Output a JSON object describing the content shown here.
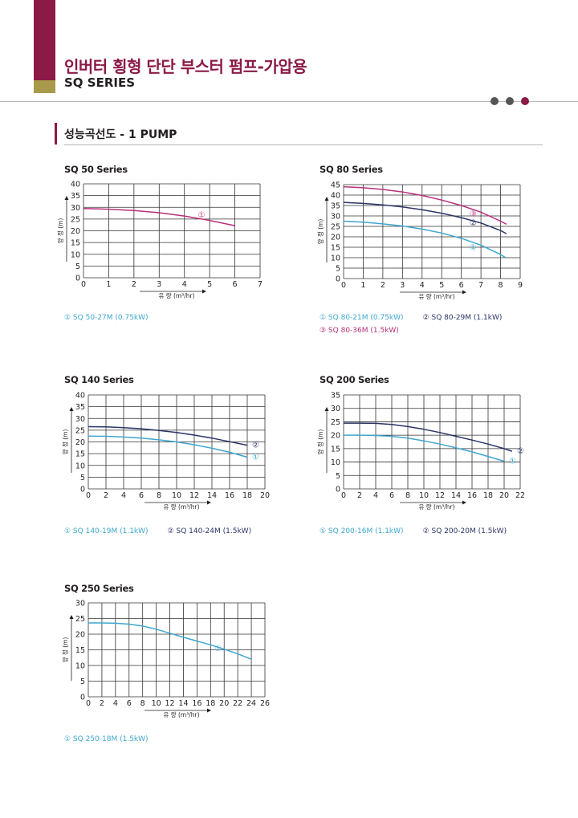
{
  "header": {
    "title_ko": "인버터 횡형 단단 부스터 펌프-가압용",
    "title_en": "SQ SERIES"
  },
  "section": {
    "title": "성능곡선도 - 1 PUMP"
  },
  "colors": {
    "brand_dark": "#8b1a47",
    "brand_gold": "#a89a4a",
    "magenta": "#b8307a",
    "navy": "#2a3466",
    "cyan": "#3ea6cf",
    "grid": "#333333",
    "dot_gray": "#555555"
  },
  "charts": [
    {
      "title": "SQ 50 Series",
      "legend": [
        [
          "① SQ 50-27M (0.75kW)"
        ]
      ]
    },
    {
      "title": "SQ 80 Series",
      "legend": [
        [
          "① SQ 80-21M (0.75kW)",
          "② SQ 80-29M (1.1kW)"
        ],
        [
          "③ SQ 80-36M (1.5kW)"
        ]
      ]
    },
    {
      "title": "SQ 140 Series",
      "legend": [
        [
          "① SQ 140-19M (1.1kW)",
          "② SQ 140-24M (1.5kW)"
        ]
      ]
    },
    {
      "title": "SQ 200 Series",
      "legend": [
        [
          "① SQ 200-16M (1.1kW)",
          "② SQ 200-20M (1.5kW)"
        ]
      ]
    },
    {
      "title": "SQ 250 Series",
      "legend": [
        [
          "① SQ 250-18M (1.5kW)"
        ]
      ]
    }
  ],
  "chart_data": [
    {
      "type": "line",
      "title": "SQ 50 Series",
      "xlabel": "유 량 (m³/hr)",
      "ylabel": "양 정 (m)",
      "xlim": [
        0,
        7
      ],
      "ylim": [
        0,
        40
      ],
      "xticks": [
        0,
        1,
        2,
        3,
        4,
        5,
        6,
        7
      ],
      "yticks": [
        0,
        5,
        10,
        15,
        20,
        25,
        30,
        35,
        40
      ],
      "grid": true,
      "series": [
        {
          "name": "①",
          "color": "magenta",
          "x": [
            0,
            1,
            2,
            3,
            4,
            5,
            6
          ],
          "y": [
            29.5,
            29.2,
            28.6,
            27.7,
            26.3,
            24.4,
            22.2
          ]
        }
      ]
    },
    {
      "type": "line",
      "title": "SQ 80 Series",
      "xlabel": "유 량 (m³/hr)",
      "ylabel": "양 정 (m)",
      "xlim": [
        0,
        9
      ],
      "ylim": [
        0,
        45
      ],
      "xticks": [
        0,
        1,
        2,
        3,
        4,
        5,
        6,
        7,
        8,
        9
      ],
      "yticks": [
        0,
        5,
        10,
        15,
        20,
        25,
        30,
        35,
        40,
        45
      ],
      "grid": true,
      "series": [
        {
          "name": "③",
          "color": "magenta",
          "x": [
            0,
            1,
            2,
            3,
            4,
            5,
            6,
            7,
            8,
            8.3
          ],
          "y": [
            44,
            43.5,
            42.7,
            41.5,
            39.8,
            37.6,
            35,
            31.8,
            27.5,
            26
          ]
        },
        {
          "name": "②",
          "color": "navy",
          "x": [
            0,
            1,
            2,
            3,
            4,
            5,
            6,
            7,
            8,
            8.3
          ],
          "y": [
            36.5,
            36,
            35.3,
            34.3,
            33,
            31.3,
            29.2,
            26.6,
            23,
            21.5
          ]
        },
        {
          "name": "①",
          "color": "cyan",
          "x": [
            0,
            1,
            2,
            3,
            4,
            5,
            6,
            7,
            8,
            8.3
          ],
          "y": [
            27.5,
            27,
            26.2,
            25.2,
            23.7,
            21.8,
            19.3,
            16,
            11.5,
            9.8
          ]
        }
      ]
    },
    {
      "type": "line",
      "title": "SQ 140 Series",
      "xlabel": "유 량 (m³/hr)",
      "ylabel": "양 정 (m)",
      "xlim": [
        0,
        20
      ],
      "ylim": [
        0,
        40
      ],
      "xticks": [
        0,
        2,
        4,
        6,
        8,
        10,
        12,
        14,
        16,
        18,
        20
      ],
      "yticks": [
        0,
        5,
        10,
        15,
        20,
        25,
        30,
        35,
        40
      ],
      "grid": true,
      "series": [
        {
          "name": "②",
          "color": "navy",
          "x": [
            0,
            2,
            4,
            6,
            8,
            10,
            12,
            14,
            16,
            18
          ],
          "y": [
            26.5,
            26.4,
            26.1,
            25.6,
            24.9,
            24,
            22.9,
            21.6,
            20.1,
            18.6
          ]
        },
        {
          "name": "①",
          "color": "cyan",
          "x": [
            0,
            2,
            4,
            6,
            8,
            10,
            12,
            14,
            16,
            18
          ],
          "y": [
            22.5,
            22.4,
            22.1,
            21.6,
            20.9,
            20,
            18.8,
            17.3,
            15.6,
            13.5
          ]
        }
      ]
    },
    {
      "type": "line",
      "title": "SQ 200 Series",
      "xlabel": "유 량 (m³/hr)",
      "ylabel": "양 정 (m)",
      "xlim": [
        0,
        22
      ],
      "ylim": [
        0,
        35
      ],
      "xticks": [
        0,
        2,
        4,
        6,
        8,
        10,
        12,
        14,
        16,
        18,
        20,
        22
      ],
      "yticks": [
        0,
        5,
        10,
        15,
        20,
        25,
        30,
        35
      ],
      "grid": true,
      "series": [
        {
          "name": "②",
          "color": "navy",
          "x": [
            0,
            2,
            4,
            6,
            8,
            10,
            12,
            14,
            16,
            18,
            20,
            21
          ],
          "y": [
            24.5,
            24.5,
            24.4,
            24,
            23.2,
            22.2,
            21,
            19.6,
            18.2,
            16.7,
            15,
            14
          ]
        },
        {
          "name": "①",
          "color": "cyan",
          "x": [
            0,
            2,
            4,
            6,
            8,
            10,
            12,
            14,
            16,
            18,
            20
          ],
          "y": [
            20,
            20,
            19.9,
            19.6,
            18.9,
            17.9,
            16.7,
            15.3,
            13.8,
            12.1,
            10.3
          ]
        }
      ]
    },
    {
      "type": "line",
      "title": "SQ 250 Series",
      "xlabel": "유 량 (m³/hr)",
      "ylabel": "양 정 (m)",
      "xlim": [
        0,
        26
      ],
      "ylim": [
        0,
        30
      ],
      "xticks": [
        0,
        2,
        4,
        6,
        8,
        10,
        12,
        14,
        16,
        18,
        20,
        22,
        24,
        26
      ],
      "yticks": [
        0,
        5,
        10,
        15,
        20,
        25,
        30
      ],
      "grid": true,
      "series": [
        {
          "name": "①",
          "color": "cyan",
          "x": [
            0,
            2,
            4,
            6,
            8,
            10,
            12,
            14,
            16,
            18,
            20,
            22,
            24
          ],
          "y": [
            23.6,
            23.6,
            23.5,
            23.2,
            22.6,
            21.6,
            20.3,
            19,
            17.8,
            16.6,
            15.2,
            13.7,
            12
          ]
        }
      ]
    }
  ]
}
